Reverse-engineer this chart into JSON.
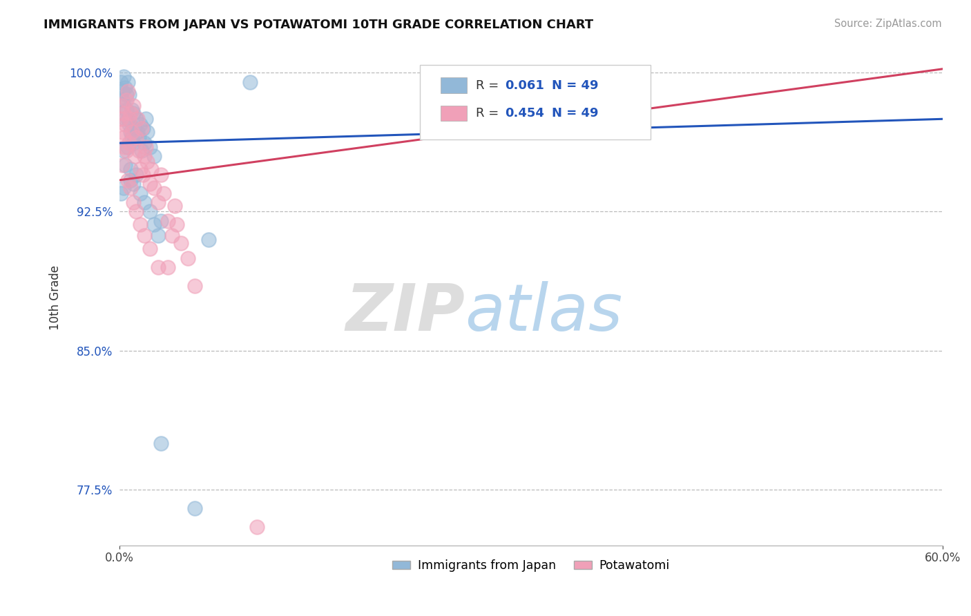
{
  "title": "IMMIGRANTS FROM JAPAN VS POTAWATOMI 10TH GRADE CORRELATION CHART",
  "source": "Source: ZipAtlas.com",
  "ylabel": "10th Grade",
  "xlim": [
    0.0,
    0.6
  ],
  "ylim": [
    0.745,
    1.012
  ],
  "ytick_vals": [
    0.775,
    0.85,
    0.925,
    1.0
  ],
  "ytick_labels": [
    "77.5%",
    "85.0%",
    "92.5%",
    "100.0%"
  ],
  "blue_color": "#92b8d8",
  "pink_color": "#f0a0b8",
  "blue_line_color": "#2255bb",
  "pink_line_color": "#d04060",
  "R_blue": 0.061,
  "N_blue": 49,
  "R_pink": 0.454,
  "N_pink": 49,
  "legend_label_blue": "Immigrants from Japan",
  "legend_label_pink": "Potawatomi",
  "watermark_zip": "ZIP",
  "watermark_atlas": "atlas",
  "background_color": "#ffffff",
  "blue_line_y0": 0.962,
  "blue_line_y1": 0.975,
  "pink_line_y0": 0.942,
  "pink_line_y1": 1.002,
  "blue_scatter_x": [
    0.001,
    0.002,
    0.002,
    0.003,
    0.003,
    0.004,
    0.004,
    0.005,
    0.005,
    0.006,
    0.006,
    0.007,
    0.007,
    0.008,
    0.009,
    0.009,
    0.01,
    0.01,
    0.011,
    0.012,
    0.013,
    0.014,
    0.015,
    0.016,
    0.017,
    0.018,
    0.019,
    0.02,
    0.022,
    0.025,
    0.003,
    0.004,
    0.006,
    0.008,
    0.01,
    0.012,
    0.015,
    0.018,
    0.022,
    0.025,
    0.028,
    0.03,
    0.065,
    0.095,
    0.001,
    0.003,
    0.008,
    0.03,
    0.055
  ],
  "blue_scatter_y": [
    0.995,
    0.99,
    0.985,
    0.998,
    0.982,
    0.975,
    0.992,
    0.988,
    0.98,
    0.995,
    0.975,
    0.988,
    0.972,
    0.968,
    0.98,
    0.965,
    0.978,
    0.962,
    0.97,
    0.975,
    0.968,
    0.965,
    0.972,
    0.958,
    0.97,
    0.962,
    0.975,
    0.968,
    0.96,
    0.955,
    0.958,
    0.95,
    0.96,
    0.948,
    0.94,
    0.945,
    0.935,
    0.93,
    0.925,
    0.918,
    0.912,
    0.92,
    0.91,
    0.995,
    0.935,
    0.938,
    0.942,
    0.8,
    0.765
  ],
  "pink_scatter_x": [
    0.001,
    0.002,
    0.002,
    0.003,
    0.003,
    0.004,
    0.005,
    0.005,
    0.006,
    0.007,
    0.007,
    0.008,
    0.009,
    0.01,
    0.011,
    0.012,
    0.013,
    0.014,
    0.015,
    0.016,
    0.017,
    0.018,
    0.019,
    0.02,
    0.022,
    0.023,
    0.025,
    0.028,
    0.03,
    0.032,
    0.035,
    0.038,
    0.04,
    0.042,
    0.045,
    0.05,
    0.002,
    0.004,
    0.006,
    0.008,
    0.01,
    0.012,
    0.015,
    0.018,
    0.022,
    0.028,
    0.035,
    0.055,
    0.1
  ],
  "pink_scatter_y": [
    0.975,
    0.968,
    0.982,
    0.978,
    0.965,
    0.972,
    0.985,
    0.958,
    0.99,
    0.975,
    0.962,
    0.978,
    0.968,
    0.982,
    0.955,
    0.965,
    0.975,
    0.958,
    0.948,
    0.97,
    0.945,
    0.955,
    0.96,
    0.952,
    0.94,
    0.948,
    0.938,
    0.93,
    0.945,
    0.935,
    0.92,
    0.912,
    0.928,
    0.918,
    0.908,
    0.9,
    0.95,
    0.96,
    0.942,
    0.938,
    0.93,
    0.925,
    0.918,
    0.912,
    0.905,
    0.895,
    0.895,
    0.885,
    0.755
  ]
}
